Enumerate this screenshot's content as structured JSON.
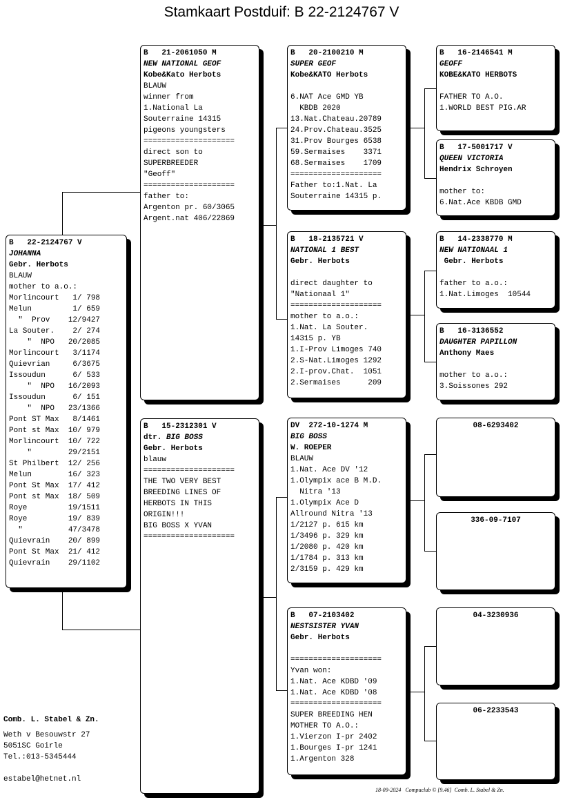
{
  "title": "Stamkaart Postduif: B    22-2124767 V",
  "pigeons": [
    {
      "ring": "B   22-2124767 V",
      "name": "JOHANNA",
      "breeder": "Gebr. Herbots",
      "lines": [
        "BLAUW",
        "mother to a.o.:",
        "Morlincourt   1/ 798",
        "Melun         1/ 659",
        "  \"  Prov    12/9427",
        "La Souter.    2/ 274",
        "    \"  NPO   20/2085",
        "Morlincourt   3/1174",
        "Quievrian     6/3675",
        "Issoudun      6/ 533",
        "    \"  NPO   16/2093",
        "Issoudun      6/ 151",
        "    \"  NPO   23/1366",
        "Pont ST Max   8/1461",
        "Pont st Max  10/ 979",
        "Morlincourt  10/ 722",
        "    \"        29/2151",
        "St Philbert  12/ 256",
        "Melun        16/ 323",
        "Pont St Max  17/ 412",
        "Pont st Max  18/ 509",
        "Roye         19/1511",
        "Roye         19/ 839",
        "  \"          47/3478",
        "Quievrain    20/ 899",
        "Pont St Max  21/ 412",
        "Quievrain    29/1102"
      ]
    },
    {
      "ring": "B   21-2061050 M",
      "name": "NEW NATIONAL GEOF",
      "breeder": "Kobe&Kato Herbots",
      "lines": [
        "BLAUW",
        "winner from",
        "1.National La",
        "Souterraine 14315",
        "pigeons youngsters",
        "====================",
        "direct son to",
        "SUPERBREEDER",
        "\"Geoff\"",
        "====================",
        "father to:",
        "Argenton pr. 60/3065",
        "Argent.nat 406/22869"
      ]
    },
    {
      "ring": "B   15-2312301 V",
      "name_prefix": "dtr. ",
      "name": "BIG BOSS",
      "breeder": "Gebr. Herbots",
      "lines": [
        "blauw",
        "====================",
        "THE TWO VERY BEST",
        "BREEDING LINES OF",
        "HERBOTS IN THIS",
        "ORIGIN!!!",
        "BIG BOSS X YVAN",
        "===================="
      ]
    },
    {
      "ring": "B   20-2100210 M",
      "name": "SUPER GEOF",
      "breeder": "Kobe&KATO Herbots",
      "lines": [
        "",
        "6.NAT Ace GMD YB",
        "  KBDB 2020",
        "13.Nat.Chateau.20789",
        "24.Prov.Chateau.3525",
        "31.Prov Bourges 6538",
        "59.Sermaises    3371",
        "68.Sermaises    1709",
        "====================",
        "Father to:1.Nat. La",
        "Souterraine 14315 p."
      ]
    },
    {
      "ring": "B   18-2135721 V",
      "name": "NATIONAL 1 BEST",
      "breeder": "Gebr. Herbots",
      "lines": [
        "",
        "direct daughter to",
        "\"Nationaal 1\"",
        "====================",
        "mother to a.o.:",
        "1.Nat. La Souter.",
        "14315 p. YB",
        "1.I-Prov Limoges 740",
        "2.S-Nat.Limoges 1292",
        "2.I-prov.Chat.  1051",
        "2.Sermaises      209"
      ]
    },
    {
      "ring": "DV  272-10-1274 M",
      "name": "BIG BOSS",
      "breeder": "W. ROEPER",
      "lines": [
        "BLAUW",
        "1.Nat. Ace DV '12",
        "1.Olympix ace B M.D.",
        "  Nitra '13",
        "1.Olympix Ace D",
        "Allround Nitra '13",
        "1/2127 p. 615 km",
        "1/3496 p. 329 km",
        "1/2080 p. 420 km",
        "1/1784 p. 313 km",
        "2/3159 p. 429 km"
      ]
    },
    {
      "ring": "B   07-2103402",
      "name": "NESTSISTER YVAN",
      "breeder": "Gebr. Herbots",
      "lines": [
        "",
        "====================",
        "Yvan won:",
        "1.Nat. Ace KDBD '09",
        "1.Nat. Ace KDBD '08",
        "====================",
        "SUPER BREEDING HEN",
        "MOTHER TO A.O.:",
        "1.Vierzon I-pr 2402",
        "1.Bourges I-pr 1241",
        "1.Argenton 328"
      ]
    },
    {
      "ring": "B   16-2146541 M",
      "name": "GEOFF",
      "breeder": "KOBE&KATO HERBOTS",
      "lines": [
        "",
        "FATHER TO A.O.",
        "1.WORLD BEST PIG.AR"
      ]
    },
    {
      "ring": "B   17-5001717 V",
      "name": "QUEEN VICTORIA",
      "breeder": "Hendrix Schroyen",
      "lines": [
        "",
        "mother to:",
        "6.Nat.Ace KBDB GMD"
      ]
    },
    {
      "ring": "B   14-2338770 M",
      "name": "NEW NATIONAAL 1",
      "breeder": " Gebr. Herbots",
      "lines": [
        "",
        "father to a.o.:",
        "1.Nat.Limoges  10544"
      ]
    },
    {
      "ring": "B   16-3136552",
      "name": "DAUGHTER PAPILLON",
      "breeder": "Anthony Maes",
      "lines": [
        "",
        "mother to a.o.:",
        "3.Soissones 292"
      ]
    },
    {
      "ring": "08-6293402",
      "unknown": true,
      "lines": []
    },
    {
      "ring": "336-09-7107",
      "unknown": true,
      "lines": []
    },
    {
      "ring": "04-3230936",
      "unknown": true,
      "lines": []
    },
    {
      "ring": "06-2233543",
      "unknown": true,
      "lines": []
    }
  ],
  "owner": {
    "name": "Comb. L. Stabel & Zn.",
    "address": "Weth v Besouwstr 27",
    "city": "5051SC  Goirle",
    "phone": "Tel.:013-5345444",
    "email": "estabel@hetnet.nl"
  },
  "footer": "18-09-2024   Compuclub © [9.46]  Comb. L. Stabel & Zn."
}
